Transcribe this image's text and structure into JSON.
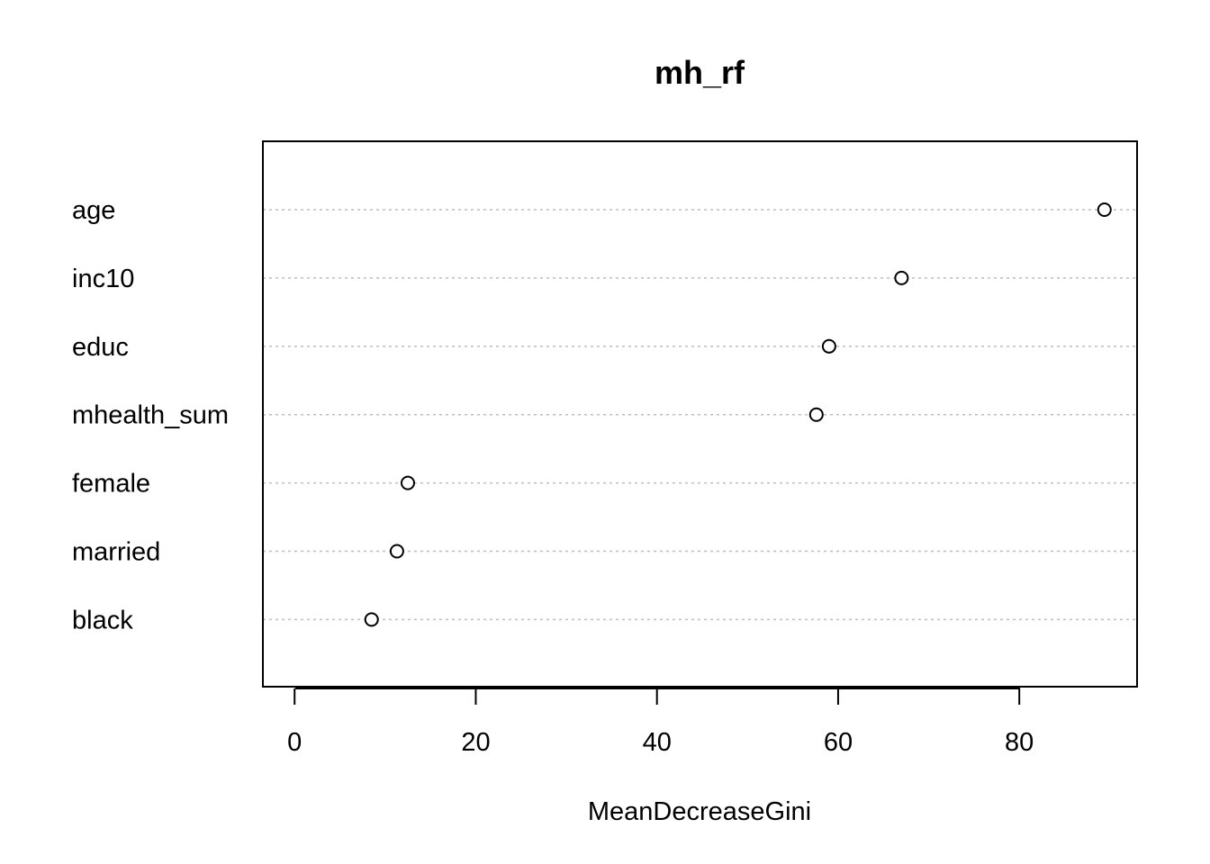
{
  "chart_data": {
    "type": "scatter",
    "title": "mh_rf",
    "xlabel": "MeanDecreaseGini",
    "ylabel": "",
    "xlim": [
      -3.5,
      93
    ],
    "x_ticks": [
      0,
      20,
      40,
      60,
      80
    ],
    "grid": "horizontal dotted guide lines per category",
    "categories": [
      "age",
      "inc10",
      "educ",
      "mhealth_sum",
      "female",
      "married",
      "black"
    ],
    "values": [
      89.4,
      67.0,
      59.0,
      57.6,
      12.5,
      11.3,
      8.5
    ],
    "point_style": "open circle",
    "colors": {
      "points": "#000000",
      "grid": "#bebebe",
      "axes": "#000000"
    }
  }
}
